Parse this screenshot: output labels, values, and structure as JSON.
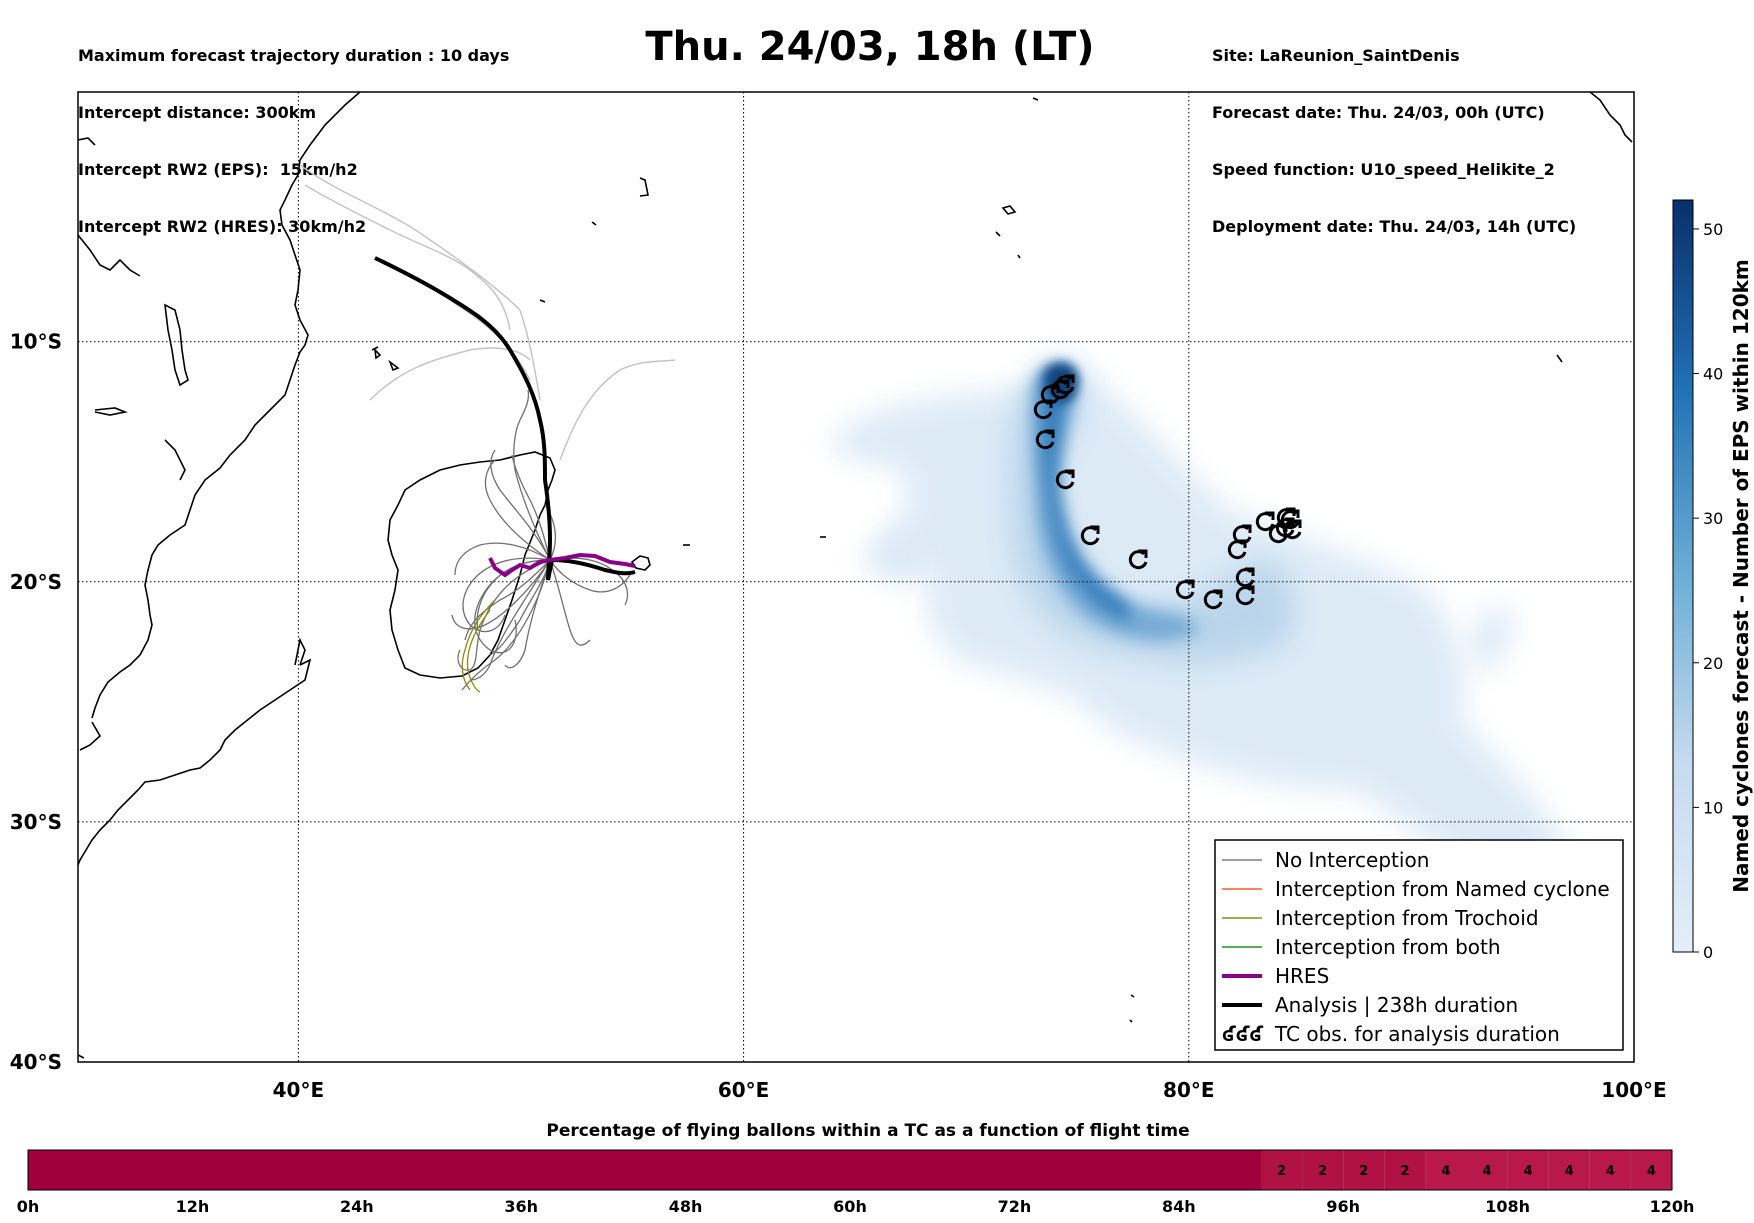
{
  "header_left": [
    "Maximum forecast trajectory duration : 10 days",
    "Intercept distance: 300km",
    "Intercept RW2 (EPS):  15km/h2",
    "Intercept RW2 (HRES): 30km/h2"
  ],
  "header_right": [
    "Site: LaReunion_SaintDenis",
    "Forecast date: Thu. 24/03, 00h (UTC)",
    "Speed function: U10_speed_Helikite_2",
    "Deployment date: Thu. 24/03, 14h (UTC)"
  ],
  "title": "Thu. 24/03, 18h (LT)",
  "map": {
    "lon_ticks": [
      {
        "value": 40,
        "label": "40°E"
      },
      {
        "value": 60,
        "label": "60°E"
      },
      {
        "value": 80,
        "label": "80°E"
      },
      {
        "value": 100,
        "label": "100°E"
      }
    ],
    "lat_ticks": [
      {
        "value": -10,
        "label": "10°S"
      },
      {
        "value": -20,
        "label": "20°S"
      },
      {
        "value": -30,
        "label": "30°S"
      },
      {
        "value": -40,
        "label": "40°S"
      }
    ]
  },
  "legend": [
    {
      "label": "No Interception",
      "color": "#7f7f7f",
      "width": 1.5
    },
    {
      "label": "Interception from Named cyclone",
      "color": "#ff5a1f",
      "width": 1.5
    },
    {
      "label": "Interception from Trochoid",
      "color": "#8a8a10",
      "width": 1.5
    },
    {
      "label": "Interception from both",
      "color": "#1a9a1a",
      "width": 1.5
    },
    {
      "label": "HRES",
      "color": "#8b008b",
      "width": 4
    },
    {
      "label": "Analysis | 238h duration",
      "color": "#000000",
      "width": 4
    },
    {
      "label": "TC obs. for analysis duration",
      "symbol": "ʛʛʛ",
      "color": "#000000"
    }
  ],
  "colorbar": {
    "label": "Named cyclones forecast - Number of EPS within 120km",
    "ticks": [
      0,
      10,
      20,
      30,
      40,
      50
    ],
    "max": 52,
    "color_low": "#e3eef9",
    "color_high": "#08306b"
  },
  "timeline": {
    "title": "Percentage of flying ballons within a TC as a function of flight time",
    "ticks": [
      "0h",
      "12h",
      "24h",
      "36h",
      "48h",
      "60h",
      "72h",
      "84h",
      "96h",
      "108h",
      "120h"
    ],
    "segments_start_hour": 90,
    "segments_step_hours": 3,
    "segment_values": [
      2,
      2,
      2,
      2,
      4,
      4,
      4,
      4,
      4,
      4
    ],
    "colors": {
      "0": "#a0003c",
      "2": "#b01245",
      "4": "#b8184c"
    }
  }
}
